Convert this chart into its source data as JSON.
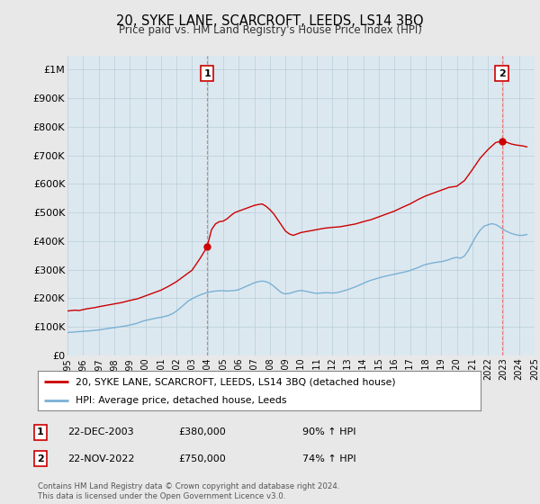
{
  "title": "20, SYKE LANE, SCARCROFT, LEEDS, LS14 3BQ",
  "subtitle": "Price paid vs. HM Land Registry's House Price Index (HPI)",
  "background_color": "#e8e8e8",
  "plot_bg_color": "#dce8f0",
  "ylim": [
    0,
    1050000
  ],
  "yticks": [
    0,
    100000,
    200000,
    300000,
    400000,
    500000,
    600000,
    700000,
    800000,
    900000,
    1000000
  ],
  "ytick_labels": [
    "£0",
    "£100K",
    "£200K",
    "£300K",
    "£400K",
    "£500K",
    "£600K",
    "£700K",
    "£800K",
    "£900K",
    "£1M"
  ],
  "sale1_date": 2003.97,
  "sale1_price": 380000,
  "sale1_label": "1",
  "sale1_text": "22-DEC-2003",
  "sale1_amount": "£380,000",
  "sale1_hpi": "90% ↑ HPI",
  "sale2_date": 2022.9,
  "sale2_price": 750000,
  "sale2_label": "2",
  "sale2_text": "22-NOV-2022",
  "sale2_amount": "£750,000",
  "sale2_hpi": "74% ↑ HPI",
  "red_line_color": "#cc0000",
  "blue_line_color": "#7ab0d4",
  "dashed_line_color": "#e87878",
  "legend1": "20, SYKE LANE, SCARCROFT, LEEDS, LS14 3BQ (detached house)",
  "legend2": "HPI: Average price, detached house, Leeds",
  "footer": "Contains HM Land Registry data © Crown copyright and database right 2024.\nThis data is licensed under the Open Government Licence v3.0.",
  "hpi_years": [
    1995.0,
    1995.25,
    1995.5,
    1995.75,
    1996.0,
    1996.25,
    1996.5,
    1996.75,
    1997.0,
    1997.25,
    1997.5,
    1997.75,
    1998.0,
    1998.25,
    1998.5,
    1998.75,
    1999.0,
    1999.25,
    1999.5,
    1999.75,
    2000.0,
    2000.25,
    2000.5,
    2000.75,
    2001.0,
    2001.25,
    2001.5,
    2001.75,
    2002.0,
    2002.25,
    2002.5,
    2002.75,
    2003.0,
    2003.25,
    2003.5,
    2003.75,
    2004.0,
    2004.25,
    2004.5,
    2004.75,
    2005.0,
    2005.25,
    2005.5,
    2005.75,
    2006.0,
    2006.25,
    2006.5,
    2006.75,
    2007.0,
    2007.25,
    2007.5,
    2007.75,
    2008.0,
    2008.25,
    2008.5,
    2008.75,
    2009.0,
    2009.25,
    2009.5,
    2009.75,
    2010.0,
    2010.25,
    2010.5,
    2010.75,
    2011.0,
    2011.25,
    2011.5,
    2011.75,
    2012.0,
    2012.25,
    2012.5,
    2012.75,
    2013.0,
    2013.25,
    2013.5,
    2013.75,
    2014.0,
    2014.25,
    2014.5,
    2014.75,
    2015.0,
    2015.25,
    2015.5,
    2015.75,
    2016.0,
    2016.25,
    2016.5,
    2016.75,
    2017.0,
    2017.25,
    2017.5,
    2017.75,
    2018.0,
    2018.25,
    2018.5,
    2018.75,
    2019.0,
    2019.25,
    2019.5,
    2019.75,
    2020.0,
    2020.25,
    2020.5,
    2020.75,
    2021.0,
    2021.25,
    2021.5,
    2021.75,
    2022.0,
    2022.25,
    2022.5,
    2022.75,
    2023.0,
    2023.25,
    2023.5,
    2023.75,
    2024.0,
    2024.25,
    2024.5
  ],
  "hpi_values": [
    80000,
    81000,
    82000,
    83000,
    84000,
    85000,
    86000,
    87500,
    89000,
    91000,
    93000,
    95000,
    97000,
    99000,
    101000,
    103000,
    106000,
    109000,
    113000,
    118000,
    122000,
    125000,
    128000,
    131000,
    133000,
    136000,
    140000,
    146000,
    155000,
    166000,
    178000,
    190000,
    198000,
    205000,
    211000,
    216000,
    220000,
    223000,
    225000,
    226000,
    226000,
    225000,
    226000,
    227000,
    230000,
    236000,
    242000,
    248000,
    254000,
    258000,
    260000,
    258000,
    252000,
    242000,
    230000,
    219000,
    215000,
    217000,
    221000,
    225000,
    227000,
    225000,
    222000,
    219000,
    217000,
    218000,
    219000,
    219000,
    218000,
    219000,
    222000,
    226000,
    230000,
    235000,
    240000,
    246000,
    252000,
    258000,
    263000,
    267000,
    271000,
    275000,
    278000,
    281000,
    284000,
    287000,
    290000,
    293000,
    297000,
    302000,
    307000,
    313000,
    318000,
    321000,
    324000,
    326000,
    328000,
    331000,
    335000,
    340000,
    343000,
    340000,
    348000,
    368000,
    393000,
    418000,
    438000,
    452000,
    457000,
    461000,
    458000,
    450000,
    440000,
    433000,
    427000,
    423000,
    420000,
    420000,
    423000
  ],
  "red_years": [
    1995.0,
    1995.25,
    1995.5,
    1995.75,
    1996.0,
    1996.25,
    1996.5,
    1996.75,
    1997.0,
    1997.5,
    1998.0,
    1998.5,
    1999.0,
    1999.5,
    2000.0,
    2000.5,
    2001.0,
    2001.5,
    2002.0,
    2002.5,
    2003.0,
    2003.5,
    2003.97,
    2004.25,
    2004.5,
    2004.75,
    2005.0,
    2005.25,
    2005.5,
    2005.75,
    2006.0,
    2006.25,
    2006.5,
    2006.75,
    2007.0,
    2007.25,
    2007.5,
    2007.75,
    2008.0,
    2008.25,
    2008.5,
    2008.75,
    2009.0,
    2009.25,
    2009.5,
    2009.75,
    2010.0,
    2010.5,
    2011.0,
    2011.5,
    2012.0,
    2012.5,
    2013.0,
    2013.5,
    2014.0,
    2014.5,
    2015.0,
    2015.5,
    2016.0,
    2016.5,
    2017.0,
    2017.5,
    2018.0,
    2018.5,
    2019.0,
    2019.5,
    2020.0,
    2020.5,
    2021.0,
    2021.5,
    2022.0,
    2022.5,
    2022.9,
    2023.0,
    2023.25,
    2023.5,
    2023.75,
    2024.0,
    2024.25,
    2024.5
  ],
  "red_values": [
    155000,
    157000,
    158000,
    157000,
    160000,
    163000,
    165000,
    167000,
    170000,
    175000,
    180000,
    185000,
    192000,
    198000,
    208000,
    218000,
    228000,
    242000,
    258000,
    278000,
    298000,
    338000,
    380000,
    440000,
    460000,
    468000,
    470000,
    478000,
    490000,
    500000,
    505000,
    510000,
    515000,
    520000,
    525000,
    528000,
    530000,
    522000,
    510000,
    495000,
    475000,
    455000,
    435000,
    425000,
    420000,
    425000,
    430000,
    435000,
    440000,
    445000,
    448000,
    450000,
    455000,
    460000,
    468000,
    475000,
    485000,
    495000,
    505000,
    518000,
    530000,
    545000,
    558000,
    568000,
    578000,
    588000,
    592000,
    612000,
    650000,
    690000,
    720000,
    745000,
    750000,
    748000,
    745000,
    740000,
    737000,
    735000,
    733000,
    730000
  ],
  "xtick_years": [
    1995,
    1996,
    1997,
    1998,
    1999,
    2000,
    2001,
    2002,
    2003,
    2004,
    2005,
    2006,
    2007,
    2008,
    2009,
    2010,
    2011,
    2012,
    2013,
    2014,
    2015,
    2016,
    2017,
    2018,
    2019,
    2020,
    2021,
    2022,
    2023,
    2024,
    2025
  ]
}
